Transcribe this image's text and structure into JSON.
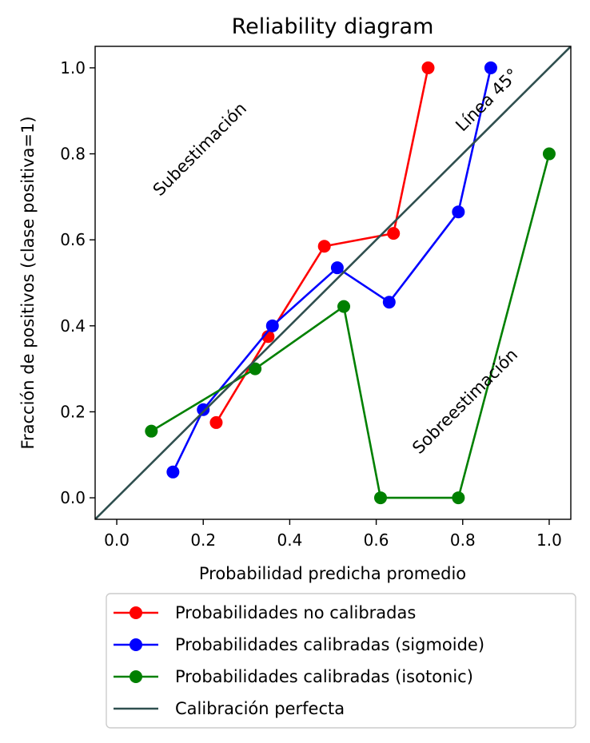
{
  "chart_data": {
    "type": "line",
    "title": "Reliability diagram",
    "xlabel": "Probabilidad predicha promedio",
    "ylabel": "Fracción de positivos (clase positiva=1)",
    "xlim": [
      -0.05,
      1.05
    ],
    "ylim": [
      -0.05,
      1.05
    ],
    "xticks": [
      0.0,
      0.2,
      0.4,
      0.6,
      0.8,
      1.0
    ],
    "yticks": [
      0.0,
      0.2,
      0.4,
      0.6,
      0.8,
      1.0
    ],
    "xtick_labels": [
      "0.0",
      "0.2",
      "0.4",
      "0.6",
      "0.8",
      "1.0"
    ],
    "ytick_labels": [
      "0.0",
      "0.2",
      "0.4",
      "0.6",
      "0.8",
      "1.0"
    ],
    "grid": false,
    "legend_position": "below",
    "series": [
      {
        "name": "Probabilidades no calibradas",
        "color": "#ff0000",
        "marker": "circle",
        "x": [
          0.23,
          0.35,
          0.48,
          0.64,
          0.72
        ],
        "y": [
          0.175,
          0.375,
          0.585,
          0.615,
          1.0
        ]
      },
      {
        "name": "Probabilidades calibradas (sigmoide)",
        "color": "#0000ff",
        "marker": "circle",
        "x": [
          0.13,
          0.2,
          0.36,
          0.51,
          0.63,
          0.79,
          0.865
        ],
        "y": [
          0.06,
          0.205,
          0.4,
          0.535,
          0.455,
          0.665,
          1.0
        ]
      },
      {
        "name": "Probabilidades calibradas (isotonic)",
        "color": "#008000",
        "marker": "circle",
        "x": [
          0.08,
          0.32,
          0.525,
          0.61,
          0.79,
          1.0
        ],
        "y": [
          0.155,
          0.3,
          0.445,
          0.0,
          0.0,
          0.8
        ]
      },
      {
        "name": "Calibración perfecta",
        "color": "#2f4f4f",
        "marker": "none",
        "x": [
          -0.05,
          1.05
        ],
        "y": [
          -0.05,
          1.05
        ]
      }
    ],
    "annotations": [
      {
        "text": "Subestimación",
        "x": 0.1,
        "y": 0.7,
        "rotation": 45,
        "color": "#000000"
      },
      {
        "text": "Sobreestimación",
        "x": 0.7,
        "y": 0.1,
        "rotation": 45,
        "color": "#000000"
      },
      {
        "text": "Línea 45°",
        "x": 0.8,
        "y": 0.85,
        "rotation": 45,
        "color": "#2f4f4f"
      }
    ]
  }
}
